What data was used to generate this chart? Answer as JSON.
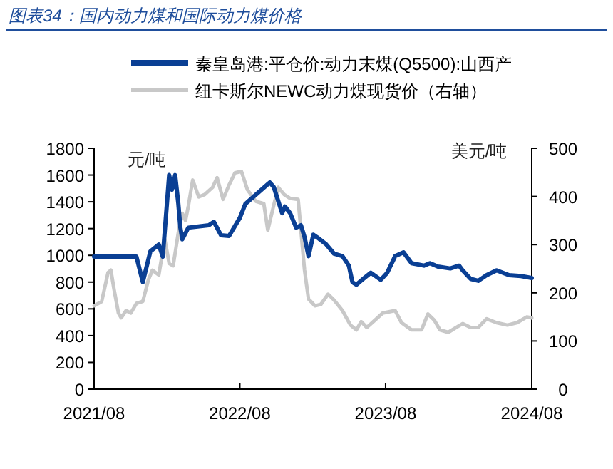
{
  "chart_data": {
    "type": "line",
    "title": "图表34：国内动力煤和国际动力煤价格",
    "ylabel": "元/吨",
    "y2label": "美元/吨",
    "xlim": [
      "2021-08-01",
      "2024-08-01"
    ],
    "xticks": [
      {
        "value": "2021-08-01",
        "label": "2021/08"
      },
      {
        "value": "2022-08-01",
        "label": "2022/08"
      },
      {
        "value": "2023-08-01",
        "label": "2023/08"
      },
      {
        "value": "2024-08-01",
        "label": "2024/08"
      }
    ],
    "ylim": [
      0,
      1800
    ],
    "yticks": [
      0,
      200,
      400,
      600,
      800,
      1000,
      1200,
      1400,
      1600,
      1800
    ],
    "y2lim": [
      0,
      500
    ],
    "y2ticks": [
      0,
      100,
      200,
      300,
      400,
      500
    ],
    "legend": "top",
    "grid": false,
    "marker": "none",
    "line_style": "solid",
    "series": [
      {
        "name": "秦皇岛港:平仓价:动力末煤(Q5500):山西产",
        "color": "#0a3f94",
        "axis": "y",
        "x": [
          "2021-08-01",
          "2021-11-15",
          "2021-12-01",
          "2021-12-20",
          "2022-01-10",
          "2022-01-20",
          "2022-02-05",
          "2022-02-12",
          "2022-02-20",
          "2022-02-28",
          "2022-03-05",
          "2022-03-10",
          "2022-03-25",
          "2022-05-15",
          "2022-05-28",
          "2022-06-15",
          "2022-07-05",
          "2022-08-01",
          "2022-08-15",
          "2022-10-15",
          "2022-10-25",
          "2022-11-15",
          "2022-11-22",
          "2022-12-05",
          "2022-12-20",
          "2023-01-01",
          "2023-01-10",
          "2023-01-20",
          "2023-02-01",
          "2023-02-10",
          "2023-03-05",
          "2023-03-25",
          "2023-04-15",
          "2023-05-01",
          "2023-05-10",
          "2023-05-20",
          "2023-06-10",
          "2023-06-25",
          "2023-07-20",
          "2023-08-05",
          "2023-08-25",
          "2023-09-15",
          "2023-10-05",
          "2023-11-05",
          "2023-11-20",
          "2023-12-10",
          "2024-01-10",
          "2024-02-01",
          "2024-02-10",
          "2024-03-01",
          "2024-03-20",
          "2024-04-10",
          "2024-05-05",
          "2024-06-05",
          "2024-07-05",
          "2024-08-01"
        ],
        "values": [
          990,
          990,
          800,
          1030,
          1080,
          990,
          1600,
          1490,
          1600,
          1385,
          1207,
          1120,
          1207,
          1225,
          1250,
          1150,
          1145,
          1280,
          1385,
          1545,
          1510,
          1315,
          1365,
          1315,
          1207,
          1225,
          1136,
          994,
          1154,
          1136,
          1083,
          1012,
          994,
          923,
          799,
          781,
          834,
          870,
          817,
          870,
          994,
          1022,
          941,
          923,
          941,
          916,
          902,
          923,
          888,
          824,
          810,
          852,
          888,
          852,
          845,
          831
        ]
      },
      {
        "name": "纽卡斯尔NEWC动力煤现货价（右轴）",
        "color": "#c8c8c8",
        "axis": "y2",
        "x": [
          "2021-08-01",
          "2021-08-20",
          "2021-09-05",
          "2021-09-12",
          "2021-09-20",
          "2021-10-01",
          "2021-10-08",
          "2021-10-20",
          "2021-11-01",
          "2021-11-15",
          "2021-12-01",
          "2021-12-15",
          "2021-12-25",
          "2022-01-10",
          "2022-01-25",
          "2022-02-05",
          "2022-02-15",
          "2022-03-01",
          "2022-03-10",
          "2022-03-18",
          "2022-03-25",
          "2022-04-05",
          "2022-04-20",
          "2022-05-05",
          "2022-05-25",
          "2022-06-05",
          "2022-06-20",
          "2022-07-05",
          "2022-07-20",
          "2022-08-05",
          "2022-08-20",
          "2022-09-10",
          "2022-09-30",
          "2022-10-10",
          "2022-10-20",
          "2022-11-05",
          "2022-11-20",
          "2022-12-05",
          "2022-12-25",
          "2023-01-10",
          "2023-01-20",
          "2023-02-05",
          "2023-02-20",
          "2023-03-10",
          "2023-03-25",
          "2023-04-15",
          "2023-05-05",
          "2023-05-20",
          "2023-06-01",
          "2023-06-15",
          "2023-07-05",
          "2023-07-25",
          "2023-08-25",
          "2023-09-10",
          "2023-10-05",
          "2023-10-30",
          "2023-11-15",
          "2023-12-01",
          "2023-12-15",
          "2024-01-05",
          "2024-01-25",
          "2024-02-10",
          "2024-03-01",
          "2024-03-20",
          "2024-04-10",
          "2024-05-05",
          "2024-06-01",
          "2024-06-25",
          "2024-07-20",
          "2024-08-01"
        ],
        "values": [
          173,
          182,
          242,
          247,
          207,
          158,
          148,
          163,
          158,
          178,
          182,
          227,
          247,
          237,
          311,
          261,
          256,
          330,
          365,
          350,
          380,
          434,
          399,
          404,
          419,
          439,
          394,
          424,
          449,
          452,
          414,
          390,
          385,
          330,
          365,
          419,
          404,
          396,
          394,
          247,
          187,
          173,
          176,
          197,
          185,
          163,
          133,
          123,
          140,
          128,
          143,
          158,
          163,
          138,
          123,
          123,
          156,
          143,
          123,
          118,
          128,
          136,
          128,
          128,
          146,
          138,
          133,
          138,
          150,
          148
        ]
      }
    ]
  }
}
